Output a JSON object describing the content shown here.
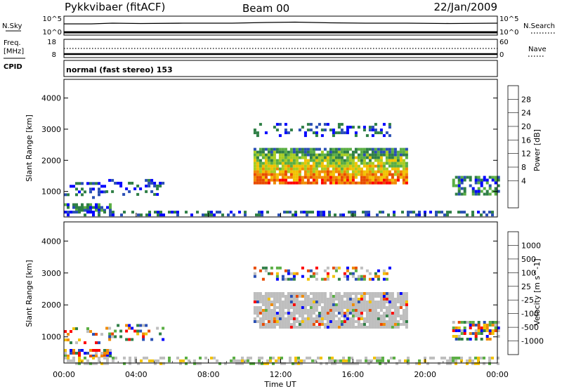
{
  "header": {
    "radar": "Pykkvibaer (fitACF)",
    "beam": "Beam 00",
    "date": "22/Jan/2009"
  },
  "strips": {
    "nsky_label": "N.Sky",
    "nsearch_label": "N.Search",
    "nsky_ticks": [
      "10^5",
      "10^0"
    ],
    "nsearch_ticks": [
      "10^5",
      "10^0"
    ],
    "freq_label": "Freq.",
    "freq_unit": "[MHz]",
    "freq_ticks": [
      "18",
      "8"
    ],
    "nave_label": "Nave",
    "nave_ticks": [
      "60",
      "0"
    ],
    "cpid_label": "CPID",
    "cpid_text": "normal (fast stereo) 153"
  },
  "colors": {
    "power": [
      "#0000ff",
      "#2a4fb4",
      "#2f7f46",
      "#5aae43",
      "#a6cc22",
      "#f2c200",
      "#f08a00",
      "#e84a00",
      "#ff0000"
    ],
    "velocity": [
      "#ff0000",
      "#e84a00",
      "#f08a00",
      "#f2c200",
      "#bebebe",
      "#5aae43",
      "#2f7f46",
      "#2a4fb4",
      "#0000ff"
    ]
  },
  "chart_data": [
    {
      "type": "heatmap",
      "panel": "power",
      "ylabel": "Slant Range [km]",
      "ylim": [
        180,
        4600
      ],
      "yticks": [
        "4000",
        "3000",
        "2000",
        "1000"
      ],
      "xlim_hours": [
        0,
        24
      ],
      "colorbar_label": "Power [dB]",
      "colorbar_ticks": [
        "28",
        "24",
        "20",
        "16",
        "12",
        "8",
        "4"
      ],
      "regions": [
        {
          "t": [
            10.5,
            19.0
          ],
          "r": [
            1300,
            2400
          ],
          "kind": "main"
        },
        {
          "t": [
            10.5,
            18.0
          ],
          "r": [
            2800,
            3200
          ],
          "kind": "weak"
        },
        {
          "t": [
            0.0,
            2.2
          ],
          "r": [
            800,
            1300
          ],
          "kind": "weak"
        },
        {
          "t": [
            2.3,
            5.5
          ],
          "r": [
            900,
            1400
          ],
          "kind": "weak"
        },
        {
          "t": [
            0.0,
            2.5
          ],
          "r": [
            380,
            620
          ],
          "kind": "mid"
        },
        {
          "t": [
            21.5,
            24.0
          ],
          "r": [
            900,
            1500
          ],
          "kind": "mid"
        },
        {
          "t": [
            0.0,
            24.0
          ],
          "r": [
            200,
            380
          ],
          "kind": "low"
        }
      ]
    },
    {
      "type": "heatmap",
      "panel": "velocity",
      "ylabel": "Slant Range [km]",
      "ylim": [
        180,
        4600
      ],
      "yticks": [
        "4000",
        "3000",
        "2000",
        "1000"
      ],
      "xlim_hours": [
        0,
        24
      ],
      "xticks": [
        "00:00",
        "04:00",
        "08:00",
        "12:00",
        "16:00",
        "20:00",
        "00:00"
      ],
      "xlabel": "Time UT",
      "colorbar_label": "Velocity [m s^-1]",
      "colorbar_ticks": [
        "1000",
        "500",
        "100",
        "25",
        "-25",
        "-100",
        "-500",
        "-1000"
      ],
      "regions": [
        {
          "t": [
            10.5,
            19.0
          ],
          "r": [
            1300,
            2400
          ],
          "kind": "main"
        },
        {
          "t": [
            10.5,
            18.0
          ],
          "r": [
            2800,
            3200
          ],
          "kind": "weak"
        },
        {
          "t": [
            0.0,
            2.2
          ],
          "r": [
            800,
            1300
          ],
          "kind": "weak"
        },
        {
          "t": [
            2.3,
            5.5
          ],
          "r": [
            900,
            1400
          ],
          "kind": "weak"
        },
        {
          "t": [
            0.0,
            2.5
          ],
          "r": [
            380,
            620
          ],
          "kind": "mid"
        },
        {
          "t": [
            21.5,
            24.0
          ],
          "r": [
            900,
            1500
          ],
          "kind": "mid"
        },
        {
          "t": [
            0.0,
            24.0
          ],
          "r": [
            200,
            380
          ],
          "kind": "low"
        }
      ]
    }
  ]
}
